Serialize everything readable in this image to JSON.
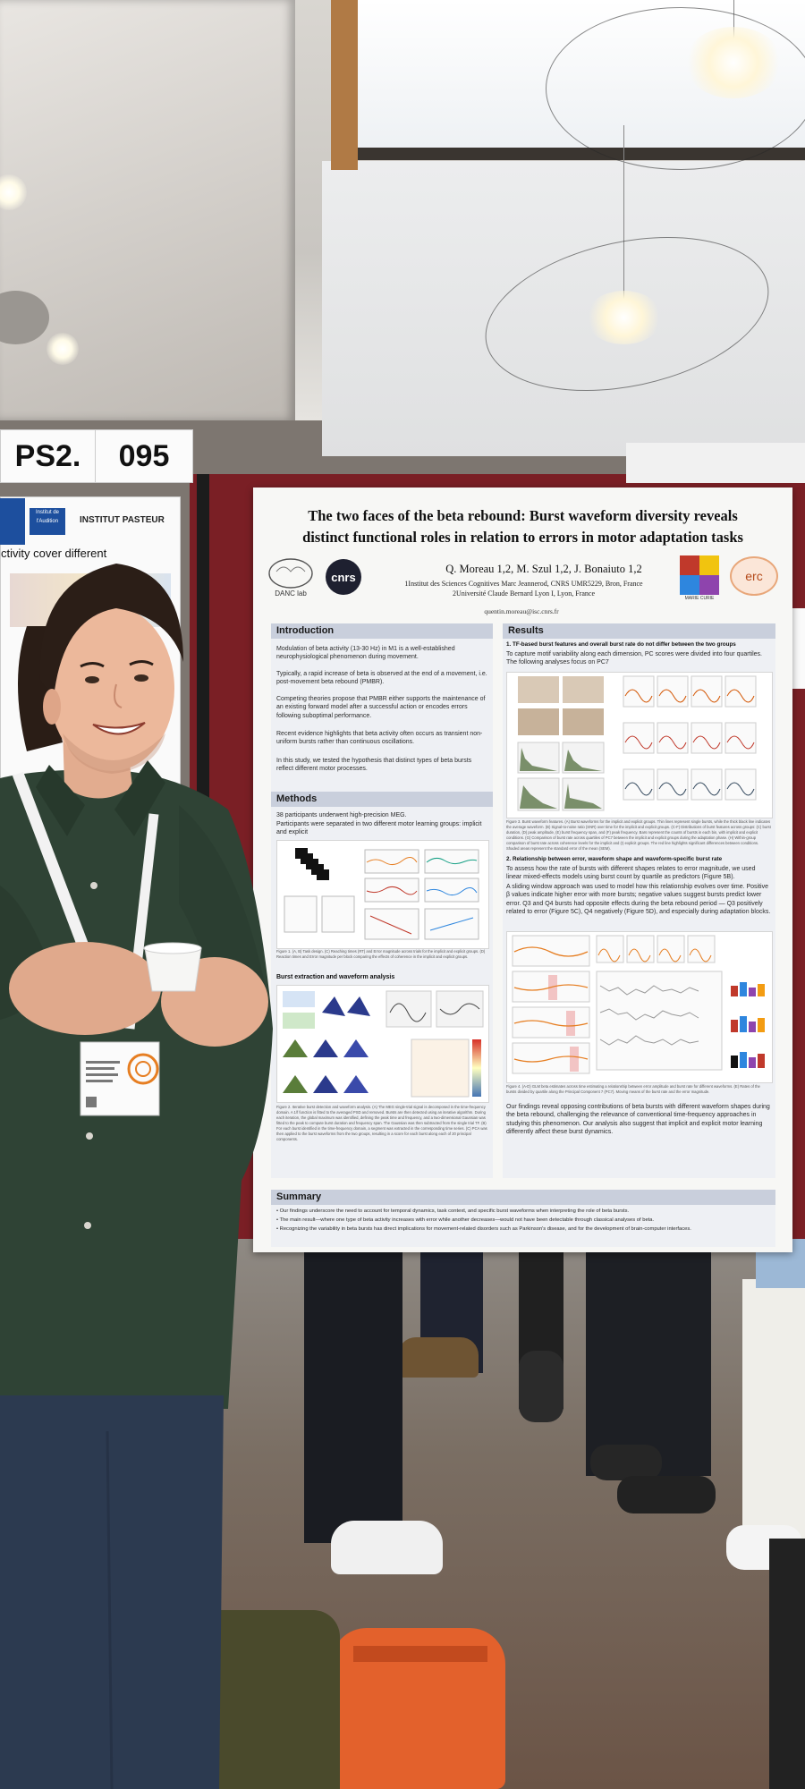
{
  "scene": {
    "sign_left": "PS2.",
    "sign_right": "095",
    "left_poster_logos": [
      "Institut de l'Audition",
      "INSTITUT PASTEUR"
    ],
    "left_poster_text": "ctivity cover different"
  },
  "poster": {
    "title_line1": "The two faces of the beta rebound: Burst waveform diversity reveals",
    "title_line2": "distinct functional roles in relation to errors in motor adaptation tasks",
    "logos": [
      "DANC lab",
      "cnrs",
      "MARIE CURIE",
      "erc"
    ],
    "authors": "Q. Moreau 1,2, M. Szul 1,2, J. Bonaiuto 1,2",
    "affiliation1": "1Institut des Sciences Cognitives Marc Jeannerod, CNRS UMR5229, Bron, France",
    "affiliation2": "2Université Claude Bernard Lyon I, Lyon, France",
    "email": "quentin.moreau@isc.cnrs.fr",
    "introduction": {
      "heading": "Introduction",
      "p1": "Modulation of beta activity (13-30 Hz) in M1 is a well-established neurophysiological phenomenon during movement.",
      "p2": "Typically, a rapid increase of beta is observed at the end of a movement, i.e. post-movement beta rebound (PMBR).",
      "p3": "Competing theories propose that PMBR either supports the maintenance of an existing forward model after a successful action or encodes errors following suboptimal performance.",
      "p4": "Recent evidence highlights that beta activity often occurs as transient non-uniform bursts rather than continuous oscillations.",
      "p5": "In this study, we tested the hypothesis that distinct types of beta bursts reflect different motor processes."
    },
    "methods": {
      "heading": "Methods",
      "p1": "38 participants underwent high-precision MEG.",
      "p2": "Participants were separated in two different motor learning groups: implicit and explicit",
      "fig_caption": "Figure 1. (A, B) Task design. (C) Reaching times (RT) and Error magnitude across trials for the implicit and explicit groups. (D) Reaction times and Error magnitude per block comparing the effects of coherence in the implicit and explicit groups.",
      "subheading": "Burst extraction and waveform analysis",
      "fig2_caption": "Figure 2. Iterative burst detection and waveform analysis. (A) The MEG single-trial signal is decomposed in the time-frequency domain. A 1/f function is fitted to the averaged PSD and removed. Bursts are then detected using an iterative algorithm. During each iteration, the global maximum was identified, defining the peak time and frequency, and a two-dimensional Gaussian was fitted to the peak to compute burst duration and frequency span. The Gaussian was then subtracted from the single trial TF. (B) For each burst identified in the time-frequency domain, a segment was extracted in the corresponding time series. (C) PCA was then applied to the burst waveforms from the two groups, resulting in a score for each burst along each of 20 principal components."
    },
    "results": {
      "heading": "Results",
      "h1": "1. TF-based burst features and overall burst rate do not differ between the two groups",
      "p1": "To capture motif variability along each dimension, PC scores were divided into four quartiles. The following analyses focus on PC7",
      "fig3_caption": "Figure 3. Burst waveform features. (A) Burst waveforms for the implicit and explicit groups. Thin lines represent single bursts, while the thick black line indicates the average waveform. (B) Signal-to-noise ratio (SNR) over time for the implicit and explicit groups. (C-F) Distributions of burst features across groups: (C) burst duration, (D) peak amplitude, (E) burst frequency span, and (F) peak frequency. Bars represent the counts of bursts in each bin, with implicit and explicit conditions. (G) Comparison of burst rate across quartiles of PC7 between the implicit and explicit groups during the adaptation phase. (H) Within-group comparison of burst rate across coherence levels for the implicit and (I) explicit groups. The red line highlights significant differences between conditions. Shaded areas represent the standard error of the mean (SEM).",
      "h2": "2. Relationship between error, waveform shape and waveform-specific burst rate",
      "p2": "To assess how the rate of bursts with different shapes relates to error magnitude, we used linear mixed-effects models using burst count by quartile as predictors (Figure 5B).",
      "p3": "A sliding window approach was used to model how this relationship evolves over time. Positive β values indicate higher error with more bursts; negative values suggest bursts predict lower error. Q3 and Q4 bursts had opposite effects during the beta rebound period — Q3 positively related to error (Figure 5C), Q4 negatively (Figure 5D), and especially during adaptation blocks.",
      "fig4_caption": "Figure 4. (A-D) GLM beta estimates across time estimating a relationship between error amplitude and burst rate for different waveforms. (E) Rates of the bursts divided by quartile along the Principal Component 7 (PC7). Moving means of the burst rate and the error magnitude.",
      "p4": "Our findings reveal opposing contributions of beta bursts with different waveform shapes during the beta rebound, challenging the relevance of conventional time-frequency approaches in studying this phenomenon. Our analysis also suggest that implicit and explicit motor learning differently affect these burst dynamics."
    },
    "summary": {
      "heading": "Summary",
      "b1": "• Our findings underscore the need to account for temporal dynamics, task context, and specific burst waveforms when interpreting the role of beta bursts.",
      "b2": "• The main result—where one type of beta activity increases with error while another decreases—would not have been detectable through classical analyses of beta.",
      "b3": "• Recognizing the variability in beta bursts has direct implications for movement-related disorders such as Parkinson's disease, and for the development of brain-computer interfaces."
    }
  },
  "badge": {
    "text": "Name / Institution"
  },
  "colors": {
    "board": "#7a1f25",
    "shirt": "#2e4133",
    "section_header": "#c9cfdc",
    "poster_bg": "#f7f7f5"
  }
}
